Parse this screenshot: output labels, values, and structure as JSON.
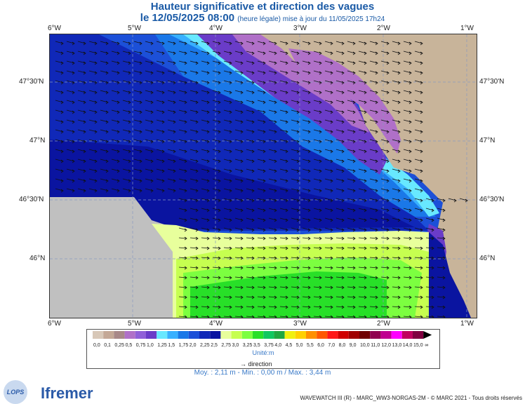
{
  "header": {
    "title": "Hauteur significative et direction des vagues",
    "date_line": "le 12/05/2025 08:00",
    "date_note": "(heure légale) mise à jour du 11/05/2025 17h24"
  },
  "axes": {
    "lon_labels": [
      "6°W",
      "5°W",
      "4°W",
      "3°W",
      "2°W",
      "1°W"
    ],
    "lat_labels": [
      "47°30'N",
      "47°N",
      "46°30'N",
      "46°N"
    ]
  },
  "legend": {
    "values": [
      "0,0",
      "0,1",
      "0,25",
      "0,5",
      "0,75",
      "1,0",
      "1,25",
      "1,5",
      "1,75",
      "2,0",
      "2,25",
      "2,5",
      "2,75",
      "3,0",
      "3,25",
      "3,5",
      "3,75",
      "4,0",
      "4,5",
      "5,0",
      "5,5",
      "6,0",
      "7,0",
      "8,0",
      "9,0",
      "10,0",
      "11,0",
      "12,0",
      "13,0",
      "14,0",
      "15,0"
    ],
    "colors": [
      "#d8c8b8",
      "#c4a896",
      "#a88888",
      "#b070c8",
      "#9060d8",
      "#6a3cc8",
      "#68e8ff",
      "#38b0ff",
      "#1a78e8",
      "#1c50d8",
      "#1028b8",
      "#0a14a0",
      "#e8ff9c",
      "#c6ff50",
      "#7cff40",
      "#28e028",
      "#10c860",
      "#20a840",
      "#f0f010",
      "#ffd000",
      "#ff9000",
      "#ff5800",
      "#ff1818",
      "#d00000",
      "#a00000",
      "#700000",
      "#900050",
      "#c00090",
      "#ff00ff",
      "#c00060",
      "#800040"
    ],
    "unit": "Unité:m",
    "direction_label": "direction",
    "tail_label": "∞"
  },
  "stats": "Moy. : 2,11 m   -   Min. : 0,00 m / Max. : 3,44 m",
  "credit": "WAVEWATCH III (R) - MARC_WW3-NORGAS-2M - © MARC 2021 - Tous droits réservés",
  "logos": {
    "left": "LOPS",
    "right": "Ifremer"
  },
  "colors": {
    "land": "#c8b49a",
    "nodata": "#c0c0c0",
    "deep_blue": "#0a14a0",
    "blue": "#1028b8",
    "mid_blue": "#1c50d8",
    "light_blue": "#38b0ff",
    "cyan": "#68e8ff",
    "purple": "#6a3cc8",
    "lavender": "#b070c8",
    "pale_yellow": "#e8ff9c",
    "lime": "#c6ff50",
    "green": "#7cff40",
    "bright_green": "#28e028"
  }
}
